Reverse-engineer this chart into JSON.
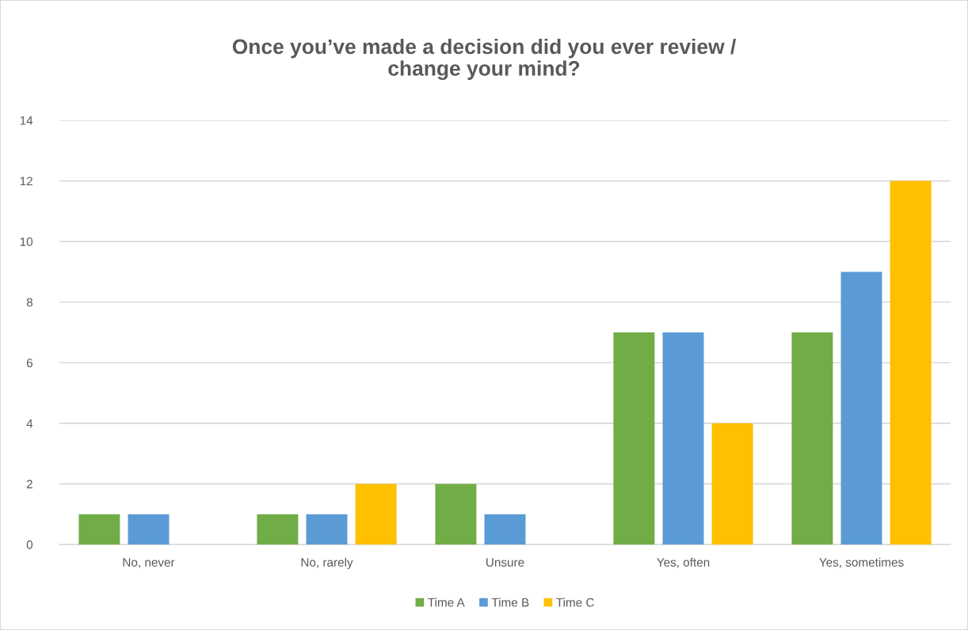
{
  "chart_data": {
    "type": "bar",
    "title": "Once you’ve made a decision did you ever review /\nchange your mind?",
    "categories": [
      "No, never",
      "No, rarely",
      "Unsure",
      "Yes, often",
      "Yes, sometimes"
    ],
    "series": [
      {
        "name": "Time A",
        "color": "#70ad47",
        "values": [
          1,
          1,
          2,
          7,
          7
        ]
      },
      {
        "name": "Time B",
        "color": "#5b9bd5",
        "values": [
          1,
          1,
          1,
          7,
          9
        ]
      },
      {
        "name": "Time C",
        "color": "#ffc000",
        "values": [
          null,
          2,
          null,
          4,
          12
        ]
      }
    ],
    "ylim": [
      0,
      14
    ],
    "yticks": [
      0,
      2,
      4,
      6,
      8,
      10,
      12,
      14
    ],
    "grid": "y",
    "legend": "bottom"
  }
}
